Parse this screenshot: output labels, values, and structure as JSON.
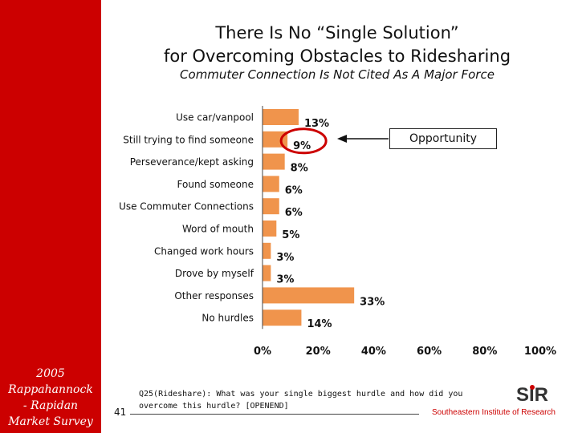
{
  "slide": {
    "title_line1": "There Is No “Single Solution”",
    "title_line2": "for Overcoming Obstacles to Ridesharing",
    "subtitle": "Commuter Connection Is Not Cited As A Major Force",
    "sidebar_lines": [
      "2005",
      "Rappahannock",
      "- Rapidan",
      "Market Survey"
    ],
    "page_number": "41",
    "question_text": "Q25(Rideshare): What was your single biggest hurdle and how did you overcome this hurdle? [OPENEND]",
    "org_name": "Southeastern Institute of Research",
    "logo_text": "SIR"
  },
  "colors": {
    "bar": "#f0944c",
    "accent": "#cc0000"
  },
  "callout": {
    "label": "Opportunity",
    "target_category": "Still trying to find someone"
  },
  "chart_data": {
    "type": "bar",
    "orientation": "horizontal",
    "categories": [
      "Use car/vanpool",
      "Still trying to find someone",
      "Perseverance/kept asking",
      "Found someone",
      "Use Commuter Connections",
      "Word of mouth",
      "Changed work hours",
      "Drove by myself",
      "Other responses",
      "No hurdles"
    ],
    "values": [
      13,
      9,
      8,
      6,
      6,
      5,
      3,
      3,
      33,
      14
    ],
    "value_labels": [
      "13%",
      "9%",
      "8%",
      "6%",
      "6%",
      "5%",
      "3%",
      "3%",
      "33%",
      "14%"
    ],
    "xlim": [
      0,
      100
    ],
    "x_ticks": [
      0,
      20,
      40,
      60,
      80,
      100
    ],
    "x_tick_labels": [
      "0%",
      "20%",
      "40%",
      "60%",
      "80%",
      "100%"
    ],
    "title": "There Is No “Single Solution” for Overcoming Obstacles to Ridesharing",
    "xlabel": "",
    "ylabel": "",
    "grid": false
  }
}
